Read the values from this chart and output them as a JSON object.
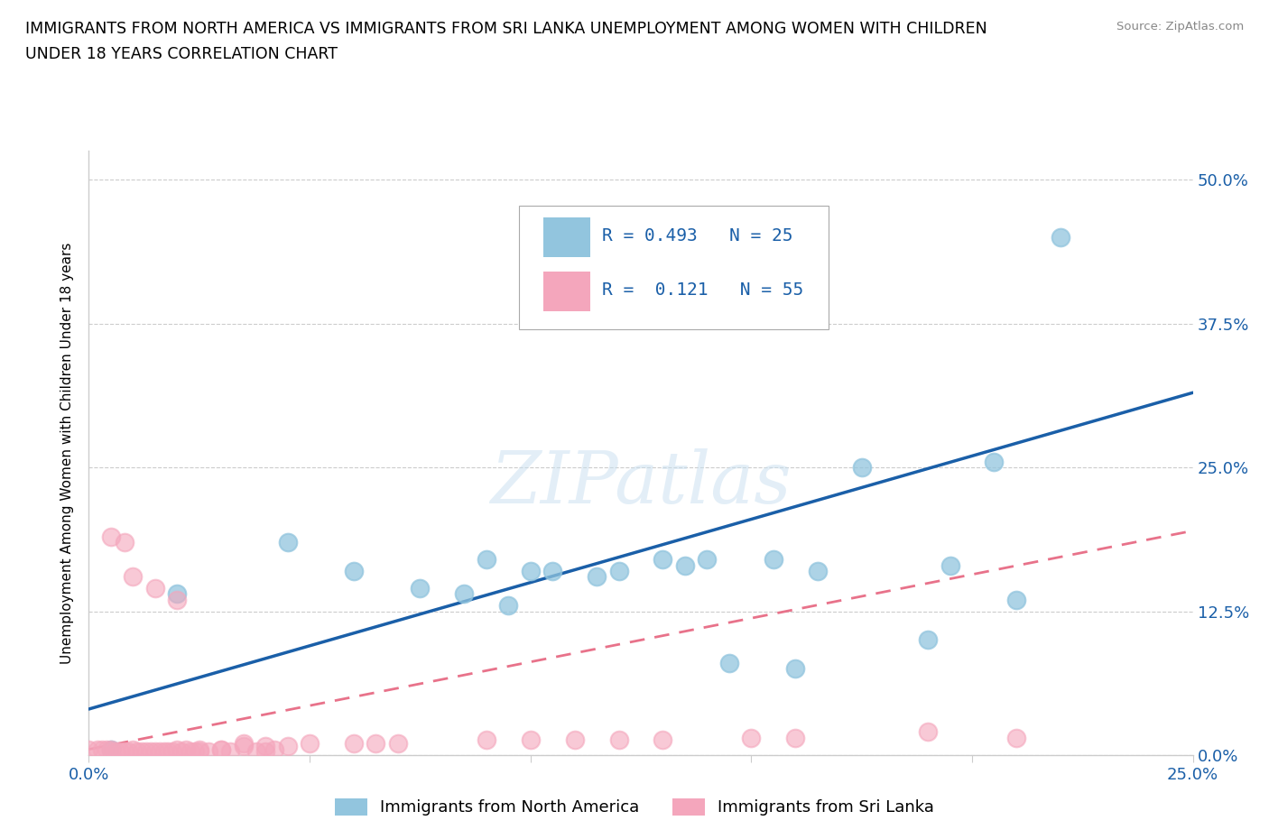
{
  "title_line1": "IMMIGRANTS FROM NORTH AMERICA VS IMMIGRANTS FROM SRI LANKA UNEMPLOYMENT AMONG WOMEN WITH CHILDREN",
  "title_line2": "UNDER 18 YEARS CORRELATION CHART",
  "source": "Source: ZipAtlas.com",
  "ylabel": "Unemployment Among Women with Children Under 18 years",
  "xlim": [
    0.0,
    0.25
  ],
  "ylim": [
    0.0,
    0.525
  ],
  "xticks": [
    0.0,
    0.05,
    0.1,
    0.15,
    0.2,
    0.25
  ],
  "yticks_right": [
    0.0,
    0.125,
    0.25,
    0.375,
    0.5
  ],
  "ytick_labels_right": [
    "0.0%",
    "12.5%",
    "25.0%",
    "37.5%",
    "50.0%"
  ],
  "R_north_america": 0.493,
  "N_north_america": 25,
  "R_sri_lanka": 0.121,
  "N_sri_lanka": 55,
  "color_north_america": "#92c5de",
  "color_sri_lanka": "#f4a6bc",
  "color_trendline_north_america": "#1a5fa8",
  "color_trendline_sri_lanka": "#e8728a",
  "watermark": "ZIPatlas",
  "north_america_x": [
    0.005,
    0.02,
    0.045,
    0.06,
    0.075,
    0.085,
    0.09,
    0.095,
    0.1,
    0.105,
    0.115,
    0.12,
    0.13,
    0.135,
    0.14,
    0.145,
    0.155,
    0.16,
    0.165,
    0.175,
    0.19,
    0.195,
    0.205,
    0.21,
    0.22
  ],
  "north_america_y": [
    0.005,
    0.14,
    0.185,
    0.16,
    0.145,
    0.14,
    0.17,
    0.13,
    0.16,
    0.16,
    0.155,
    0.16,
    0.17,
    0.165,
    0.17,
    0.08,
    0.17,
    0.075,
    0.16,
    0.25,
    0.1,
    0.165,
    0.255,
    0.135,
    0.45
  ],
  "sri_lanka_x": [
    0.0,
    0.002,
    0.003,
    0.004,
    0.005,
    0.006,
    0.007,
    0.008,
    0.009,
    0.01,
    0.011,
    0.012,
    0.013,
    0.014,
    0.015,
    0.016,
    0.017,
    0.018,
    0.019,
    0.02,
    0.021,
    0.022,
    0.023,
    0.024,
    0.025,
    0.027,
    0.03,
    0.032,
    0.035,
    0.038,
    0.04,
    0.042,
    0.045,
    0.005,
    0.008,
    0.01,
    0.015,
    0.02,
    0.025,
    0.03,
    0.035,
    0.04,
    0.05,
    0.06,
    0.065,
    0.07,
    0.09,
    0.1,
    0.11,
    0.12,
    0.13,
    0.15,
    0.16,
    0.19,
    0.21
  ],
  "sri_lanka_y": [
    0.005,
    0.005,
    0.005,
    0.005,
    0.005,
    0.003,
    0.003,
    0.003,
    0.003,
    0.005,
    0.003,
    0.003,
    0.003,
    0.003,
    0.003,
    0.003,
    0.003,
    0.003,
    0.003,
    0.005,
    0.003,
    0.005,
    0.003,
    0.003,
    0.003,
    0.003,
    0.005,
    0.003,
    0.008,
    0.003,
    0.003,
    0.005,
    0.008,
    0.19,
    0.185,
    0.155,
    0.145,
    0.135,
    0.005,
    0.005,
    0.01,
    0.008,
    0.01,
    0.01,
    0.01,
    0.01,
    0.013,
    0.013,
    0.013,
    0.013,
    0.013,
    0.015,
    0.015,
    0.02,
    0.015
  ],
  "trendline_na_x0": 0.0,
  "trendline_na_x1": 0.25,
  "trendline_na_y0": 0.04,
  "trendline_na_y1": 0.315,
  "trendline_sl_x0": 0.0,
  "trendline_sl_x1": 0.25,
  "trendline_sl_y0": 0.005,
  "trendline_sl_y1": 0.195
}
